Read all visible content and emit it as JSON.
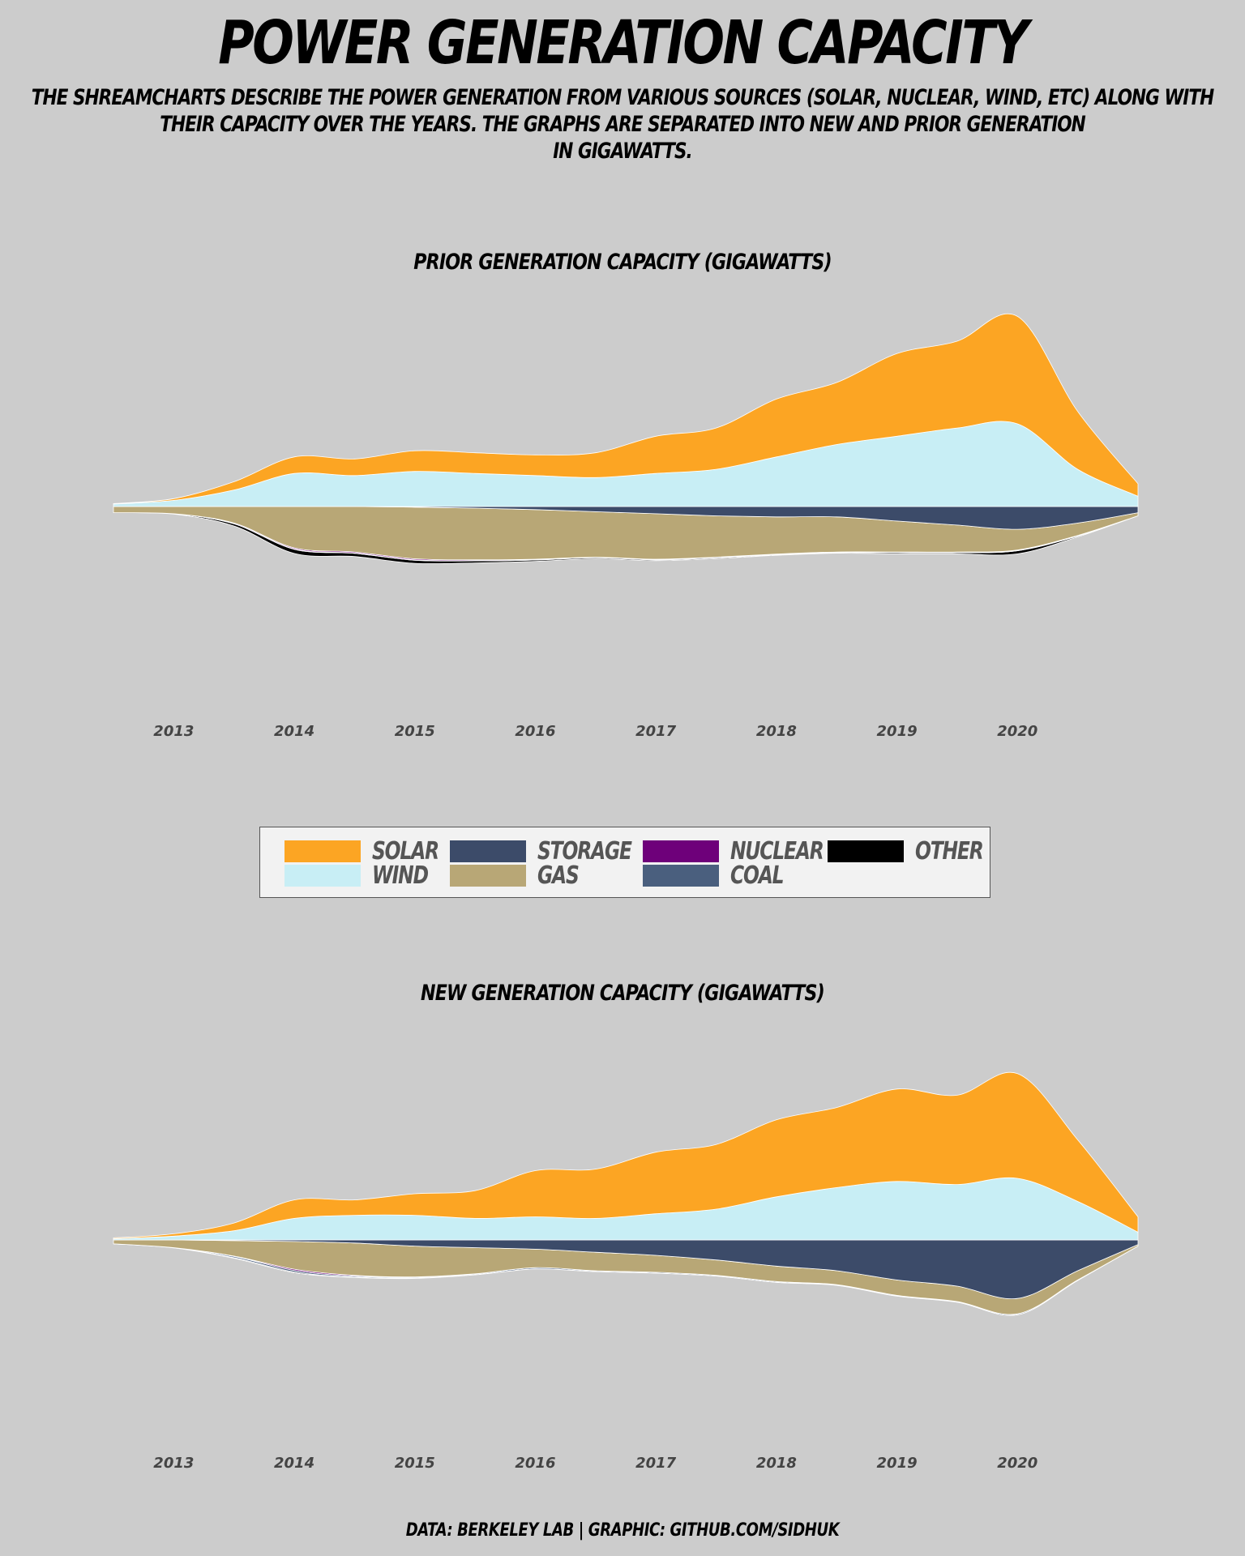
{
  "title": "POWER GENERATION CAPACITY",
  "subtitle": {
    "line1": "THE SHREAMCHARTS DESCRIBE THE POWER GENERATION FROM VARIOUS SOURCES (SOLAR, NUCLEAR, WIND, ETC) ALONG WITH",
    "line2": "THEIR CAPACITY OVER THE YEARS. THE GRAPHS ARE SEPARATED INTO NEW AND PRIOR GENERATION",
    "line3": "IN GIGAWATTS."
  },
  "credit": "DATA: BERKELEY LAB | GRAPHIC: GITHUB.COM/SIDHUK",
  "colors": {
    "solar": "#fca523",
    "wind": "#c8eef5",
    "storage": "#3c4b69",
    "gas": "#b8a776",
    "nuclear": "#6e007a",
    "coal": "#4a5f7e",
    "other": "#000000",
    "background": "#cccccc"
  },
  "legend": {
    "items": [
      {
        "key": "solar",
        "label": "SOLAR"
      },
      {
        "key": "wind",
        "label": "WIND"
      },
      {
        "key": "storage",
        "label": "STORAGE"
      },
      {
        "key": "gas",
        "label": "GAS"
      },
      {
        "key": "nuclear",
        "label": "NUCLEAR"
      },
      {
        "key": "coal",
        "label": "COAL"
      },
      {
        "key": "other",
        "label": "OTHER"
      }
    ]
  },
  "chart_data": [
    {
      "type": "area",
      "title": "PRIOR GENERATION CAPACITY (GIGAWATTS)",
      "x": [
        2012.5,
        2013,
        2013.5,
        2014,
        2014.5,
        2015,
        2015.5,
        2016,
        2016.5,
        2017,
        2017.5,
        2018,
        2018.5,
        2019,
        2019.5,
        2020,
        2020.5,
        2021
      ],
      "x_ticks": [
        "2013",
        "2014",
        "2015",
        "2016",
        "2017",
        "2018",
        "2019",
        "2020"
      ],
      "series": [
        {
          "name": "SOLAR",
          "color": "#fca523",
          "values": [
            0.2,
            0.8,
            4,
            8,
            8,
            10,
            10,
            10,
            12,
            18,
            20,
            28,
            30,
            40,
            42,
            52,
            28,
            6
          ]
        },
        {
          "name": "WIND",
          "color": "#c8eef5",
          "values": [
            1.2,
            3,
            8,
            16,
            15,
            17,
            16,
            15,
            14,
            16,
            18,
            24,
            30,
            34,
            38,
            40,
            18,
            5
          ]
        },
        {
          "name": "STORAGE",
          "color": "#3c4b69",
          "values": [
            0,
            0,
            0,
            0,
            0,
            0.3,
            0.8,
            1.5,
            2.5,
            3.5,
            4.5,
            5,
            5,
            7,
            9,
            11,
            8,
            3
          ]
        },
        {
          "name": "GAS",
          "color": "#b8a776",
          "values": [
            3,
            3.5,
            8,
            20,
            22,
            25,
            25,
            24,
            22,
            22,
            20,
            18,
            17,
            15,
            13,
            10,
            6,
            1.5
          ]
        },
        {
          "name": "NUCLEAR",
          "color": "#6e007a",
          "values": [
            0,
            0,
            0.3,
            0.5,
            0.5,
            0.5,
            0.4,
            0.3,
            0.2,
            0.2,
            0.2,
            0.2,
            0.2,
            0.3,
            0.3,
            0.3,
            0.2,
            0
          ]
        },
        {
          "name": "COAL",
          "color": "#4a5f7e",
          "values": [
            0,
            0,
            0.1,
            0.2,
            0.2,
            0.2,
            0.1,
            0.1,
            0.1,
            0.1,
            0.1,
            0.1,
            0.1,
            0.1,
            0.1,
            0.1,
            0.1,
            0
          ]
        },
        {
          "name": "OTHER",
          "color": "#000000",
          "values": [
            0,
            0.2,
            1,
            2,
            1.5,
            1.5,
            1,
            0.6,
            0.5,
            0.4,
            0.4,
            0.3,
            0.3,
            0.5,
            0.5,
            1.5,
            0.4,
            0
          ]
        }
      ]
    },
    {
      "type": "area",
      "title": "NEW GENERATION CAPACITY (GIGAWATTS)",
      "x": [
        2012.5,
        2013,
        2013.5,
        2014,
        2014.5,
        2015,
        2015.5,
        2016,
        2016.5,
        2017,
        2017.5,
        2018,
        2018.5,
        2019,
        2019.5,
        2020,
        2020.5,
        2021
      ],
      "x_ticks": [
        "2013",
        "2014",
        "2015",
        "2016",
        "2017",
        "2018",
        "2019",
        "2020"
      ],
      "series": [
        {
          "name": "SOLAR",
          "color": "#fca523",
          "values": [
            0.5,
            1.5,
            5,
            12,
            10,
            14,
            18,
            30,
            32,
            40,
            42,
            50,
            52,
            60,
            58,
            68,
            40,
            10
          ]
        },
        {
          "name": "WIND",
          "color": "#c8eef5",
          "values": [
            0.8,
            2.5,
            6,
            14,
            16,
            16,
            14,
            15,
            14,
            17,
            20,
            28,
            34,
            38,
            36,
            40,
            25,
            5
          ]
        },
        {
          "name": "STORAGE",
          "color": "#3c4b69",
          "values": [
            0,
            0,
            0.5,
            1,
            2,
            4,
            5,
            6,
            8,
            10,
            13,
            17,
            20,
            26,
            30,
            38,
            20,
            3
          ]
        },
        {
          "name": "GAS",
          "color": "#b8a776",
          "values": [
            2.5,
            5,
            10,
            18,
            21,
            20,
            17,
            12,
            12,
            11,
            10,
            10,
            9,
            10,
            10,
            10,
            6,
            1
          ]
        },
        {
          "name": "NUCLEAR",
          "color": "#6e007a",
          "values": [
            0,
            0,
            0.2,
            0.8,
            0.5,
            0.3,
            0.1,
            0,
            0,
            0,
            0,
            0,
            0,
            0,
            0,
            0,
            0,
            0
          ]
        },
        {
          "name": "COAL",
          "color": "#4a5f7e",
          "values": [
            0,
            0.1,
            0.8,
            1,
            0.6,
            0.5,
            0.5,
            0.8,
            0.5,
            0.5,
            0.4,
            0.5,
            0.4,
            0.4,
            0.4,
            0.6,
            0.3,
            0
          ]
        },
        {
          "name": "OTHER",
          "color": "#000000",
          "values": [
            0,
            0.1,
            0.4,
            0.5,
            0.3,
            0.2,
            0.1,
            0.1,
            0.1,
            0.1,
            0.1,
            0.1,
            0.1,
            0.1,
            0.1,
            0.1,
            0,
            0
          ]
        }
      ]
    }
  ]
}
